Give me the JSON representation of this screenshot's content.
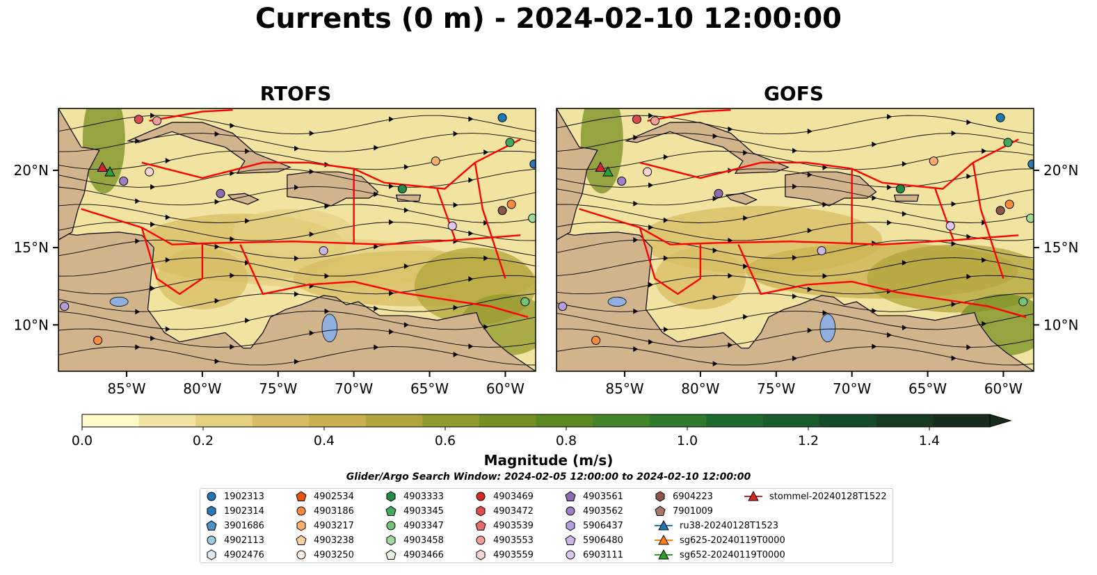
{
  "title": "Currents (0 m) - 2024-02-10 12:00:00",
  "panels": [
    {
      "name": "RTOFS"
    },
    {
      "name": "GOFS"
    }
  ],
  "lon_ticks": [
    "85°W",
    "80°W",
    "75°W",
    "70°W",
    "65°W",
    "60°W"
  ],
  "lat_ticks": [
    "20°N",
    "15°N",
    "10°N"
  ],
  "map_extent": {
    "lon": [
      -89.5,
      -58
    ],
    "lat": [
      7,
      24
    ]
  },
  "colorbar": {
    "label": "Magnitude (m/s)",
    "ticks": [
      "0.0",
      "0.2",
      "0.4",
      "0.6",
      "0.8",
      "1.0",
      "1.2",
      "1.4"
    ],
    "range": [
      0,
      1.5
    ],
    "extend": "max",
    "colors": [
      "#fdf9c9",
      "#f1e4a1",
      "#e4d081",
      "#d7bc63",
      "#c9b04d",
      "#b0a43a",
      "#92992b",
      "#768f22",
      "#5c8824",
      "#468428",
      "#2f7a2c",
      "#1d6b2f",
      "#185c2d",
      "#164b27",
      "#163b21",
      "#172d1c"
    ]
  },
  "colors": {
    "land": "#d2b48c",
    "eez": "#ff0000",
    "streamline": "#000000",
    "lake": "#8fb0de"
  },
  "search_window": "Glider/Argo Search Window: 2024-02-05 12:00:00 to 2024-02-10 12:00:00",
  "legend": [
    {
      "label": "1902313",
      "marker": "circle",
      "color": "#1f77b4"
    },
    {
      "label": "1902314",
      "marker": "hexagon",
      "color": "#2c78b6"
    },
    {
      "label": "3901686",
      "marker": "pentagon",
      "color": "#4a90c6"
    },
    {
      "label": "4902113",
      "marker": "circle",
      "color": "#9ecae1"
    },
    {
      "label": "4902476",
      "marker": "hexagon",
      "color": "#deebf7"
    },
    {
      "label": "4902534",
      "marker": "pentagon",
      "color": "#e6550d"
    },
    {
      "label": "4903186",
      "marker": "circle",
      "color": "#fd8d3c"
    },
    {
      "label": "4903217",
      "marker": "hexagon",
      "color": "#fdae6b"
    },
    {
      "label": "4903238",
      "marker": "pentagon",
      "color": "#fdd0a2"
    },
    {
      "label": "4903250",
      "marker": "circle",
      "color": "#feedde"
    },
    {
      "label": "4903333",
      "marker": "hexagon",
      "color": "#238b45"
    },
    {
      "label": "4903345",
      "marker": "pentagon",
      "color": "#41ab5d"
    },
    {
      "label": "4903347",
      "marker": "circle",
      "color": "#74c476"
    },
    {
      "label": "4903458",
      "marker": "hexagon",
      "color": "#a1d99b"
    },
    {
      "label": "4903466",
      "marker": "pentagon",
      "color": "#e5f5e0"
    },
    {
      "label": "4903469",
      "marker": "circle",
      "color": "#d62728"
    },
    {
      "label": "4903472",
      "marker": "hexagon",
      "color": "#de4b4b"
    },
    {
      "label": "4903539",
      "marker": "pentagon",
      "color": "#e66b6b"
    },
    {
      "label": "4903553",
      "marker": "circle",
      "color": "#f4a09a"
    },
    {
      "label": "4903559",
      "marker": "hexagon",
      "color": "#fcd5d2"
    },
    {
      "label": "4903561",
      "marker": "pentagon",
      "color": "#8c6bb1"
    },
    {
      "label": "4903562",
      "marker": "circle",
      "color": "#9e7fc7"
    },
    {
      "label": "5906437",
      "marker": "hexagon",
      "color": "#b39ddb"
    },
    {
      "label": "5906480",
      "marker": "pentagon",
      "color": "#cbb6ea"
    },
    {
      "label": "6903111",
      "marker": "circle",
      "color": "#e0c6f2"
    },
    {
      "label": "6904223",
      "marker": "hexagon",
      "color": "#8c564b"
    },
    {
      "label": "7901009",
      "marker": "pentagon",
      "color": "#a9786b"
    },
    {
      "label": "ru38-20240128T1523",
      "marker": "triangle-line",
      "color": "#1f77b4"
    },
    {
      "label": "sg625-20240119T0000",
      "marker": "triangle-line",
      "color": "#ff7f0e"
    },
    {
      "label": "sg652-20240119T0000",
      "marker": "triangle-line",
      "color": "#2ca02c"
    },
    {
      "label": "stommel-20240128T1522",
      "marker": "triangle-line",
      "color": "#d62728"
    }
  ],
  "argo_positions": [
    {
      "id": "1902313",
      "lon": -60.2,
      "lat": 23.4
    },
    {
      "id": "1902314",
      "lon": -58.1,
      "lat": 20.4
    },
    {
      "id": "4903345",
      "lon": -59.7,
      "lat": 21.8
    },
    {
      "id": "4903217",
      "lon": -64.6,
      "lat": 20.6
    },
    {
      "id": "4903333",
      "lon": -66.8,
      "lat": 18.8
    },
    {
      "id": "6904223",
      "lon": -60.2,
      "lat": 17.4
    },
    {
      "id": "4903186",
      "lon": -59.6,
      "lat": 17.8
    },
    {
      "id": "4903458",
      "lon": -58.2,
      "lat": 16.9
    },
    {
      "id": "6903111",
      "lon": -63.5,
      "lat": 16.4
    },
    {
      "id": "4903347",
      "lon": -58.7,
      "lat": 11.5
    },
    {
      "id": "5906480",
      "lon": -72.0,
      "lat": 14.8
    },
    {
      "id": "4903561",
      "lon": -78.8,
      "lat": 18.5
    },
    {
      "id": "4903562",
      "lon": -85.2,
      "lat": 19.3
    },
    {
      "id": "4903559",
      "lon": -83.5,
      "lat": 19.9
    },
    {
      "id": "4903472",
      "lon": -84.2,
      "lat": 23.3
    },
    {
      "id": "4903553",
      "lon": -83.0,
      "lat": 23.2
    },
    {
      "id": "4903186",
      "lon": -86.9,
      "lat": 9.0
    },
    {
      "id": "5906437",
      "lon": -89.1,
      "lat": 11.2
    }
  ],
  "glider_positions": [
    {
      "id": "stommel-20240128T1522",
      "lon": -86.6,
      "lat": 20.2
    },
    {
      "id": "sg652-20240119T0000",
      "lon": -86.1,
      "lat": 19.9
    }
  ]
}
